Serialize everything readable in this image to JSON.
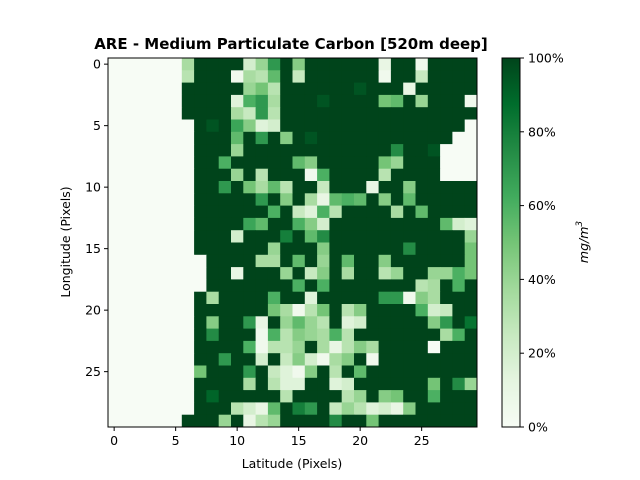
{
  "chart_data": {
    "type": "heatmap",
    "title": "ARE - Medium Particulate Carbon [520m deep]",
    "xlabel": "Latitude (Pixels)",
    "ylabel": "Longitude (Pixels)",
    "x_ticks": [
      "0",
      "5",
      "10",
      "15",
      "20",
      "25"
    ],
    "y_ticks": [
      "0",
      "5",
      "10",
      "15",
      "20",
      "25"
    ],
    "colorbar": {
      "label": "mg/m",
      "label_superscript": "3",
      "ticks": [
        "0%",
        "20%",
        "40%",
        "60%",
        "80%",
        "100%"
      ],
      "range": [
        0,
        100
      ],
      "colormap": "Greens",
      "colors": [
        "#f7fcf5",
        "#e5f5e0",
        "#c7e9c0",
        "#a1d99b",
        "#74c476",
        "#41ab5d",
        "#238b45",
        "#006d2c",
        "#00441b"
      ]
    },
    "grid_size": [
      30,
      30
    ],
    "values": [
      [
        0,
        0,
        0,
        0,
        0,
        0,
        35,
        100,
        100,
        100,
        100,
        20,
        40,
        70,
        100,
        45,
        100,
        100,
        100,
        100,
        100,
        100,
        10,
        100,
        100,
        5,
        100,
        100,
        100,
        100
      ],
      [
        0,
        0,
        0,
        0,
        0,
        0,
        30,
        100,
        100,
        100,
        5,
        35,
        30,
        55,
        100,
        25,
        100,
        100,
        100,
        100,
        100,
        100,
        5,
        100,
        100,
        25,
        100,
        100,
        100,
        100
      ],
      [
        0,
        0,
        0,
        0,
        0,
        0,
        100,
        100,
        100,
        100,
        100,
        40,
        50,
        30,
        100,
        100,
        100,
        100,
        100,
        100,
        95,
        100,
        100,
        100,
        10,
        100,
        100,
        100,
        100,
        100
      ],
      [
        0,
        0,
        0,
        0,
        0,
        0,
        100,
        100,
        100,
        100,
        15,
        60,
        70,
        35,
        100,
        100,
        100,
        95,
        100,
        100,
        100,
        100,
        50,
        55,
        100,
        40,
        100,
        100,
        100,
        5
      ],
      [
        0,
        0,
        0,
        0,
        0,
        0,
        100,
        100,
        100,
        100,
        35,
        25,
        70,
        30,
        100,
        100,
        100,
        100,
        100,
        100,
        100,
        100,
        100,
        100,
        100,
        100,
        100,
        100,
        100,
        100
      ],
      [
        0,
        0,
        0,
        0,
        0,
        0,
        0,
        100,
        95,
        100,
        65,
        45,
        15,
        20,
        100,
        100,
        100,
        100,
        100,
        100,
        100,
        100,
        100,
        100,
        100,
        100,
        100,
        100,
        100,
        0
      ],
      [
        0,
        0,
        0,
        0,
        0,
        0,
        0,
        100,
        100,
        100,
        55,
        100,
        70,
        100,
        45,
        100,
        95,
        100,
        100,
        100,
        100,
        100,
        100,
        100,
        100,
        100,
        100,
        100,
        0,
        0
      ],
      [
        0,
        0,
        0,
        0,
        0,
        0,
        0,
        100,
        100,
        100,
        40,
        100,
        100,
        100,
        100,
        100,
        100,
        100,
        100,
        100,
        100,
        100,
        100,
        75,
        100,
        100,
        95,
        0,
        0,
        0
      ],
      [
        0,
        0,
        0,
        0,
        0,
        0,
        0,
        100,
        100,
        60,
        100,
        100,
        100,
        100,
        100,
        55,
        45,
        100,
        100,
        100,
        100,
        100,
        50,
        40,
        100,
        100,
        100,
        0,
        0,
        0
      ],
      [
        0,
        0,
        0,
        0,
        0,
        0,
        0,
        100,
        100,
        100,
        40,
        100,
        30,
        100,
        100,
        100,
        5,
        60,
        100,
        100,
        100,
        100,
        30,
        100,
        100,
        100,
        100,
        0,
        0,
        0
      ],
      [
        0,
        0,
        0,
        0,
        0,
        0,
        0,
        100,
        100,
        70,
        100,
        50,
        35,
        55,
        30,
        100,
        100,
        25,
        100,
        100,
        100,
        10,
        100,
        100,
        45,
        100,
        100,
        100,
        100,
        100
      ],
      [
        0,
        0,
        0,
        0,
        0,
        0,
        0,
        100,
        100,
        100,
        100,
        100,
        70,
        100,
        45,
        100,
        35,
        10,
        55,
        60,
        55,
        100,
        45,
        100,
        55,
        100,
        100,
        100,
        100,
        100
      ],
      [
        0,
        0,
        0,
        0,
        0,
        0,
        0,
        100,
        100,
        100,
        100,
        100,
        100,
        60,
        100,
        25,
        15,
        60,
        30,
        100,
        100,
        100,
        100,
        35,
        100,
        55,
        100,
        100,
        100,
        100
      ],
      [
        0,
        0,
        0,
        0,
        0,
        0,
        0,
        100,
        100,
        100,
        100,
        65,
        55,
        100,
        100,
        60,
        45,
        20,
        100,
        100,
        100,
        100,
        100,
        100,
        100,
        100,
        100,
        55,
        20,
        15
      ],
      [
        0,
        0,
        0,
        0,
        0,
        0,
        0,
        100,
        100,
        100,
        20,
        100,
        100,
        100,
        80,
        100,
        55,
        75,
        100,
        100,
        100,
        100,
        100,
        100,
        100,
        100,
        100,
        100,
        100,
        40
      ],
      [
        0,
        0,
        0,
        0,
        0,
        0,
        0,
        100,
        100,
        100,
        100,
        100,
        100,
        40,
        100,
        100,
        100,
        45,
        100,
        100,
        100,
        100,
        100,
        100,
        75,
        100,
        100,
        100,
        100,
        50
      ],
      [
        0,
        0,
        0,
        0,
        0,
        0,
        0,
        0,
        100,
        100,
        100,
        100,
        35,
        35,
        100,
        55,
        100,
        40,
        100,
        55,
        100,
        100,
        45,
        100,
        100,
        100,
        100,
        100,
        100,
        50
      ],
      [
        0,
        0,
        0,
        0,
        0,
        0,
        0,
        0,
        100,
        100,
        10,
        100,
        100,
        100,
        40,
        100,
        25,
        45,
        100,
        35,
        100,
        100,
        30,
        40,
        100,
        100,
        40,
        40,
        60,
        50
      ],
      [
        0,
        0,
        0,
        0,
        0,
        0,
        0,
        0,
        100,
        100,
        100,
        100,
        100,
        100,
        100,
        60,
        100,
        60,
        100,
        100,
        100,
        100,
        100,
        100,
        100,
        30,
        35,
        100,
        60,
        100
      ],
      [
        0,
        0,
        0,
        0,
        0,
        0,
        0,
        100,
        35,
        100,
        100,
        100,
        100,
        60,
        100,
        100,
        15,
        100,
        100,
        100,
        100,
        100,
        70,
        70,
        5,
        45,
        35,
        100,
        100,
        100
      ],
      [
        0,
        0,
        0,
        0,
        0,
        0,
        0,
        100,
        100,
        100,
        100,
        100,
        100,
        50,
        35,
        5,
        30,
        50,
        100,
        30,
        45,
        100,
        100,
        100,
        100,
        60,
        20,
        25,
        100,
        100
      ],
      [
        0,
        0,
        0,
        0,
        0,
        0,
        0,
        100,
        45,
        100,
        100,
        70,
        10,
        100,
        40,
        55,
        40,
        30,
        100,
        15,
        20,
        100,
        100,
        100,
        100,
        100,
        45,
        70,
        100,
        85
      ],
      [
        0,
        0,
        0,
        0,
        0,
        0,
        0,
        100,
        75,
        100,
        100,
        100,
        5,
        60,
        30,
        45,
        40,
        35,
        60,
        30,
        100,
        100,
        100,
        100,
        100,
        100,
        100,
        35,
        60,
        100
      ],
      [
        0,
        0,
        0,
        0,
        0,
        0,
        0,
        100,
        100,
        100,
        100,
        60,
        5,
        30,
        30,
        40,
        100,
        35,
        10,
        30,
        45,
        35,
        100,
        100,
        100,
        100,
        0,
        100,
        100,
        100
      ],
      [
        0,
        0,
        0,
        0,
        0,
        0,
        0,
        100,
        100,
        70,
        100,
        100,
        20,
        100,
        25,
        45,
        20,
        5,
        35,
        45,
        100,
        5,
        100,
        100,
        100,
        100,
        100,
        100,
        100,
        100
      ],
      [
        0,
        0,
        0,
        0,
        0,
        0,
        0,
        50,
        100,
        100,
        100,
        70,
        100,
        25,
        15,
        5,
        45,
        100,
        30,
        100,
        55,
        100,
        100,
        100,
        100,
        100,
        100,
        100,
        100,
        100
      ],
      [
        0,
        0,
        0,
        0,
        0,
        0,
        0,
        100,
        100,
        100,
        100,
        35,
        100,
        30,
        15,
        15,
        100,
        100,
        15,
        20,
        100,
        100,
        100,
        100,
        100,
        100,
        50,
        100,
        75,
        40
      ],
      [
        0,
        0,
        0,
        0,
        0,
        0,
        0,
        100,
        90,
        100,
        100,
        100,
        100,
        100,
        30,
        100,
        100,
        100,
        100,
        30,
        40,
        100,
        45,
        50,
        100,
        100,
        60,
        100,
        100,
        100
      ],
      [
        0,
        0,
        0,
        0,
        0,
        0,
        0,
        100,
        100,
        100,
        30,
        20,
        10,
        55,
        100,
        80,
        70,
        100,
        25,
        40,
        30,
        15,
        20,
        10,
        45,
        100,
        100,
        100,
        100,
        100
      ],
      [
        0,
        0,
        0,
        0,
        0,
        0,
        100,
        100,
        100,
        40,
        100,
        10,
        30,
        40,
        100,
        100,
        100,
        100,
        75,
        100,
        100,
        50,
        100,
        100,
        100,
        100,
        100,
        100,
        100,
        100
      ]
    ]
  }
}
